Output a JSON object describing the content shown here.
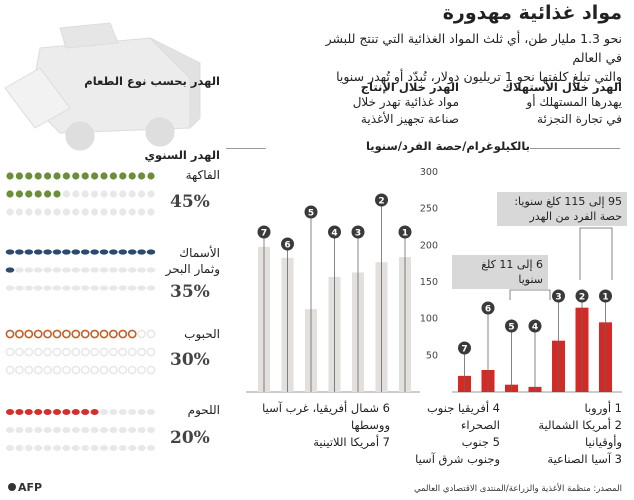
{
  "header": {
    "title": "مواد غذائية مهدورة",
    "intro_line1": "نحو 1.3 مليار طن، أي ثلث المواد الغذائية التي تنتج للبشر في العالم",
    "intro_line2": "والتي تبلغ كلفتها نحو 1 تريليون دولار، تُبدّد أو تُهدر سنويا"
  },
  "sections": {
    "consumption": {
      "title": "الهدر خلال الاستهلاك",
      "line1": "يهدرها المستهلك أو",
      "line2": "في تجارة التجزئة"
    },
    "production": {
      "title": "الهدر خلال الإنتاج",
      "line1": "مواد غذائية تهدر خلال",
      "line2": "صناعة تجهيز الأغذية"
    },
    "by_food_type": {
      "title": "الهدر بحسب نوع الطعام"
    },
    "annual": {
      "title": "الهدر السنوي"
    }
  },
  "unit_label": "بالكيلوغرام/حصة الفرد/سنويا",
  "callouts": {
    "big": {
      "line1": "95 إلى 115 كلغ سنويا:",
      "line2": "حصة الفرد من الهدر"
    },
    "small": "6 إلى 11 كلغ سنويا"
  },
  "food_types": [
    {
      "label": "الفاكهة",
      "label2": "",
      "percent": "45%",
      "color": "#6b8e3a",
      "icon": "fruit-icon"
    },
    {
      "label": "الأسماك",
      "label2": "وثمار البحر",
      "percent": "35%",
      "color": "#2c4a6e",
      "icon": "fish-icon"
    },
    {
      "label": "الحبوب",
      "label2": "",
      "percent": "30%",
      "color": "#c0602a",
      "icon": "grain-icon"
    },
    {
      "label": "اللحوم",
      "label2": "",
      "percent": "20%",
      "color": "#d62d2d",
      "icon": "meat-icon"
    }
  ],
  "legend": {
    "col1": [
      "1 أوروبا",
      "2 أمريكا الشمالية",
      "وأوقيانيا",
      "3 آسيا الصناعية"
    ],
    "col2": [
      "4 أفريقيا جنوب",
      "الصحراء",
      "5 جنوب",
      "وجنوب شرق آسيا"
    ],
    "col3": [
      "6 شمال أفريقيا، غرب آسيا",
      "ووسطها",
      "7 أمريكا اللاتينية"
    ]
  },
  "source": "المصدر: منظمة الأغذية والزراعة/المنتدى الاقتصادي العالمي",
  "brand": "AFP",
  "chart_data": {
    "type": "bar",
    "ylabel": "بالكيلوغرام/حصة الفرد/سنويا",
    "ylim": [
      0,
      300
    ],
    "yticks": [
      50,
      100,
      150,
      200,
      250,
      300
    ],
    "grid": false,
    "groups": [
      {
        "name": "الهدر خلال الاستهلاك",
        "color": "#d42a25",
        "categories": [
          "7",
          "6",
          "5",
          "4",
          "3",
          "2",
          "1"
        ],
        "values": [
          22,
          30,
          10,
          7,
          70,
          115,
          95
        ]
      },
      {
        "name": "الهدر خلال الإنتاج",
        "color": "#e3dfdc",
        "categories": [
          "7",
          "6",
          "5",
          "4",
          "3",
          "2",
          "1"
        ],
        "values": [
          198,
          183,
          113,
          157,
          163,
          177,
          184
        ]
      }
    ]
  }
}
